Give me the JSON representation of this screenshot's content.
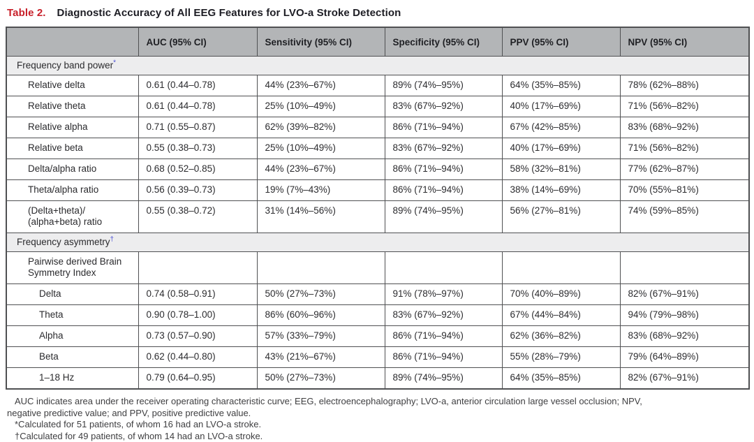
{
  "title": {
    "label": "Table 2.",
    "text": "Diagnostic Accuracy of All EEG Features for LVO-a Stroke Detection"
  },
  "colors": {
    "accent_red": "#c8202a",
    "header_bg": "#b3b5b7",
    "section_bg": "#ededee",
    "border": "#4f5052",
    "footnote_marker": "#4a4fd4"
  },
  "table": {
    "columns": [
      "",
      "AUC (95% CI)",
      "Sensitivity (95% CI)",
      "Specificity (95% CI)",
      "PPV (95% CI)",
      "NPV (95% CI)"
    ],
    "column_keys": [
      "feature",
      "auc",
      "sensitivity",
      "specificity",
      "ppv",
      "npv"
    ],
    "sections": [
      {
        "header": "Frequency band power",
        "marker": "*",
        "rows": [
          {
            "label": "Relative delta",
            "indent": 1,
            "cells": [
              "0.61 (0.44–0.78)",
              "44% (23%–67%)",
              "89% (74%–95%)",
              "64% (35%–85%)",
              "78% (62%–88%)"
            ]
          },
          {
            "label": "Relative theta",
            "indent": 1,
            "cells": [
              "0.61 (0.44–0.78)",
              "25% (10%–49%)",
              "83% (67%–92%)",
              "40% (17%–69%)",
              "71% (56%–82%)"
            ]
          },
          {
            "label": "Relative alpha",
            "indent": 1,
            "cells": [
              "0.71 (0.55–0.87)",
              "62% (39%–82%)",
              "86% (71%–94%)",
              "67% (42%–85%)",
              "83% (68%–92%)"
            ]
          },
          {
            "label": "Relative beta",
            "indent": 1,
            "cells": [
              "0.55 (0.38–0.73)",
              "25% (10%–49%)",
              "83% (67%–92%)",
              "40% (17%–69%)",
              "71% (56%–82%)"
            ]
          },
          {
            "label": "Delta/alpha ratio",
            "indent": 1,
            "cells": [
              "0.68 (0.52–0.85)",
              "44% (23%–67%)",
              "86% (71%–94%)",
              "58% (32%–81%)",
              "77% (62%–87%)"
            ]
          },
          {
            "label": "Theta/alpha ratio",
            "indent": 1,
            "cells": [
              "0.56 (0.39–0.73)",
              "19% (7%–43%)",
              "86% (71%–94%)",
              "38% (14%–69%)",
              "70% (55%–81%)"
            ]
          },
          {
            "label": "(Delta+theta)/\n(alpha+beta) ratio",
            "indent": 1,
            "cells": [
              "0.55 (0.38–0.72)",
              "31% (14%–56%)",
              "89% (74%–95%)",
              "56% (27%–81%)",
              "74% (59%–85%)"
            ]
          }
        ]
      },
      {
        "header": "Frequency asymmetry",
        "marker": "†",
        "rows": [
          {
            "label": "Pairwise derived Brain\nSymmetry Index",
            "indent": 1,
            "cells": [
              "",
              "",
              "",
              "",
              ""
            ]
          },
          {
            "label": "Delta",
            "indent": 2,
            "cells": [
              "0.74 (0.58–0.91)",
              "50% (27%–73%)",
              "91% (78%–97%)",
              "70% (40%–89%)",
              "82% (67%–91%)"
            ]
          },
          {
            "label": "Theta",
            "indent": 2,
            "cells": [
              "0.90 (0.78–1.00)",
              "86% (60%–96%)",
              "83% (67%–92%)",
              "67% (44%–84%)",
              "94% (79%–98%)"
            ]
          },
          {
            "label": "Alpha",
            "indent": 2,
            "cells": [
              "0.73 (0.57–0.90)",
              "57% (33%–79%)",
              "86% (71%–94%)",
              "62% (36%–82%)",
              "83% (68%–92%)"
            ]
          },
          {
            "label": "Beta",
            "indent": 2,
            "cells": [
              "0.62 (0.44–0.80)",
              "43% (21%–67%)",
              "86% (71%–94%)",
              "55% (28%–79%)",
              "79% (64%–89%)"
            ]
          },
          {
            "label": "1–18 Hz",
            "indent": 2,
            "cells": [
              "0.79 (0.64–0.95)",
              "50% (27%–73%)",
              "89% (74%–95%)",
              "64% (35%–85%)",
              "82% (67%–91%)"
            ]
          }
        ]
      }
    ]
  },
  "footnotes": {
    "abbreviations": "AUC indicates area under the receiver operating characteristic curve; EEG, electroencephalography; LVO-a, anterior circulation large vessel occlusion; NPV,\nnegative predictive value; and PPV, positive predictive value.",
    "asterisk": "*Calculated for 51 patients, of whom 16 had an LVO-a stroke.",
    "dagger": "†Calculated for 49 patients, of whom 14 had an LVO-a stroke."
  }
}
